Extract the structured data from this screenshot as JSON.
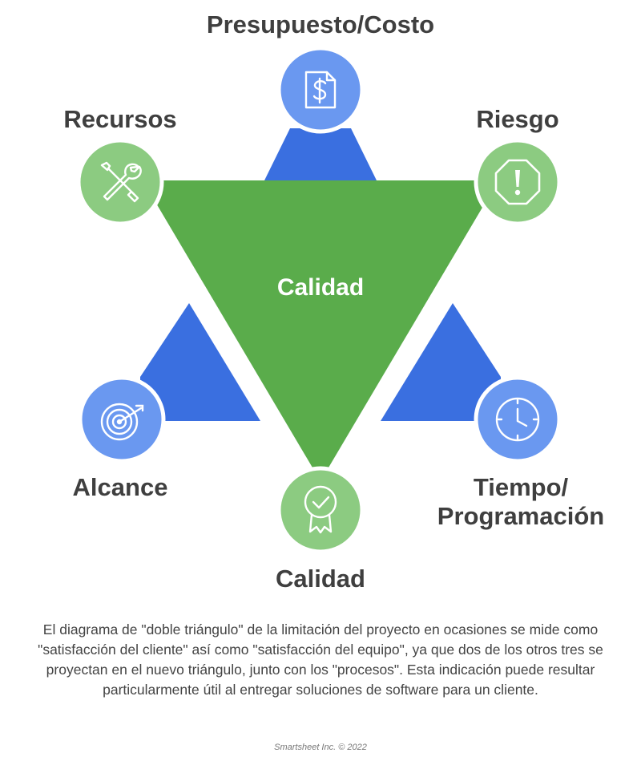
{
  "labels": {
    "top": "Presupuesto/Costo",
    "top_left": "Recursos",
    "top_right": "Riesgo",
    "bottom_left": "Alcance",
    "bottom_right_line1": "Tiempo/",
    "bottom_right_line2": "Programación",
    "bottom": "Calidad",
    "center": "Calidad"
  },
  "icons": {
    "top": "dollar-document-icon",
    "top_left": "tools-icon",
    "top_right": "warning-octagon-icon",
    "bottom_left": "target-icon",
    "bottom_right": "clock-icon",
    "bottom": "award-ribbon-icon"
  },
  "colors": {
    "green_triangle": "#5aac4b",
    "blue_triangle": "#3a6fe0",
    "blue_circle": "#6a98f0",
    "green_circle": "#8ccb81",
    "text": "#3f3f3f"
  },
  "caption": "El diagrama de \"doble triángulo\" de la limitación del proyecto en ocasiones se mide como \"satisfacción del cliente\" así como \"satisfacción del equipo\", ya que dos de los otros tres se proyectan en el nuevo triángulo, junto con los \"procesos\". Esta indicación puede resultar particularmente útil al entregar soluciones de software para un cliente.",
  "credit": "Smartsheet Inc. © 2022"
}
